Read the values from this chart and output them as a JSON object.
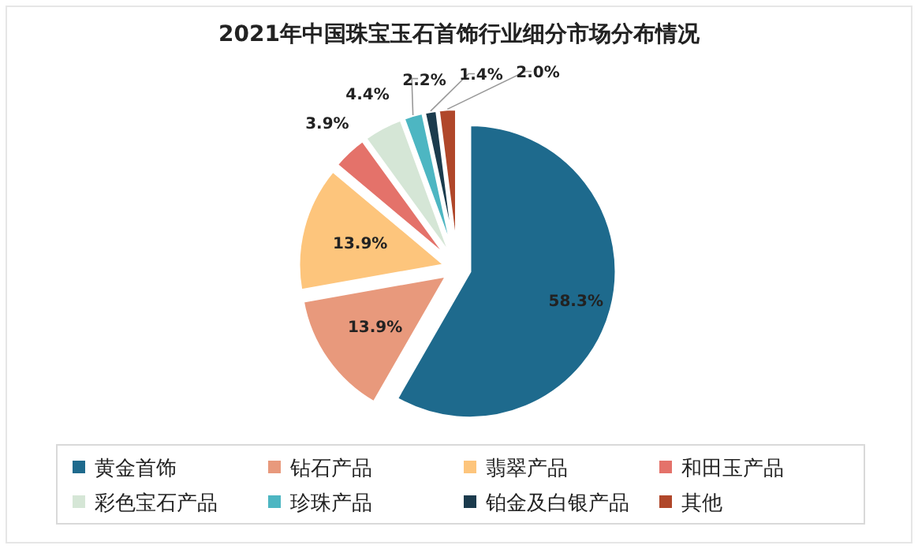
{
  "chart_data": {
    "type": "pie",
    "title": "2021年中国珠宝玉石首饰行业细分市场分布情况",
    "categories": [
      "黄金首饰",
      "钻石产品",
      "翡翠产品",
      "和田玉产品",
      "彩色宝石产品",
      "珍珠产品",
      "铂金及白银产品",
      "其他"
    ],
    "values": [
      58.3,
      13.9,
      13.9,
      3.9,
      4.4,
      2.2,
      1.4,
      2.0
    ],
    "colors": [
      "#1e6a8d",
      "#e8997c",
      "#fdc57c",
      "#e4726a",
      "#d5e6d6",
      "#4db6c2",
      "#1b3b4d",
      "#b0472a"
    ],
    "value_labels": [
      "58.3%",
      "13.9%",
      "13.9%",
      "3.9%",
      "4.4%",
      "2.2%",
      "1.4%",
      "2.0%"
    ],
    "legend": "bottom"
  }
}
